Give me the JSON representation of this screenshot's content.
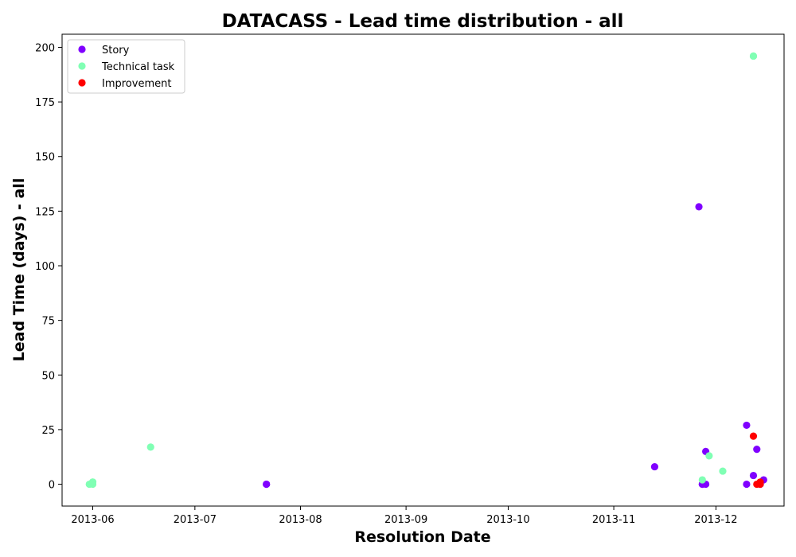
{
  "chart_data": {
    "type": "scatter",
    "title": "DATACASS - Lead time distribution - all",
    "xlabel": "Resolution Date",
    "ylabel": "Lead Time (days) - all",
    "x_type": "date",
    "xlim": [
      "2013-05-23",
      "2013-12-21"
    ],
    "ylim": [
      -10,
      206
    ],
    "x_ticks": [
      "2013-06",
      "2013-07",
      "2013-08",
      "2013-09",
      "2013-10",
      "2013-11",
      "2013-12"
    ],
    "y_ticks": [
      0,
      25,
      50,
      75,
      100,
      125,
      150,
      175,
      200
    ],
    "grid": false,
    "legend_position": "top-left",
    "series": [
      {
        "name": "Story",
        "color": "#8000ff",
        "points": [
          {
            "x": "2013-07-22",
            "y": 0
          },
          {
            "x": "2013-07-22",
            "y": 0
          },
          {
            "x": "2013-11-13",
            "y": 8
          },
          {
            "x": "2013-11-26",
            "y": 127
          },
          {
            "x": "2013-11-27",
            "y": 0
          },
          {
            "x": "2013-11-27",
            "y": 0
          },
          {
            "x": "2013-11-28",
            "y": 0
          },
          {
            "x": "2013-11-28",
            "y": 15
          },
          {
            "x": "2013-12-10",
            "y": 27
          },
          {
            "x": "2013-12-10",
            "y": 0
          },
          {
            "x": "2013-12-12",
            "y": 4
          },
          {
            "x": "2013-12-13",
            "y": 16
          },
          {
            "x": "2013-12-14",
            "y": 0
          },
          {
            "x": "2013-12-15",
            "y": 2
          }
        ]
      },
      {
        "name": "Technical task",
        "color": "#80ffb4",
        "points": [
          {
            "x": "2013-05-31",
            "y": 0
          },
          {
            "x": "2013-06-01",
            "y": 0
          },
          {
            "x": "2013-06-01",
            "y": 1
          },
          {
            "x": "2013-06-01",
            "y": 1
          },
          {
            "x": "2013-06-18",
            "y": 17
          },
          {
            "x": "2013-11-27",
            "y": 2
          },
          {
            "x": "2013-11-29",
            "y": 13
          },
          {
            "x": "2013-12-03",
            "y": 6
          },
          {
            "x": "2013-12-12",
            "y": 196
          },
          {
            "x": "2013-12-12",
            "y": 196
          }
        ]
      },
      {
        "name": "Improvement",
        "color": "#ff0000",
        "points": [
          {
            "x": "2013-12-12",
            "y": 22
          },
          {
            "x": "2013-12-13",
            "y": 0
          },
          {
            "x": "2013-12-14",
            "y": 0
          },
          {
            "x": "2013-12-14",
            "y": 1
          }
        ]
      }
    ]
  }
}
